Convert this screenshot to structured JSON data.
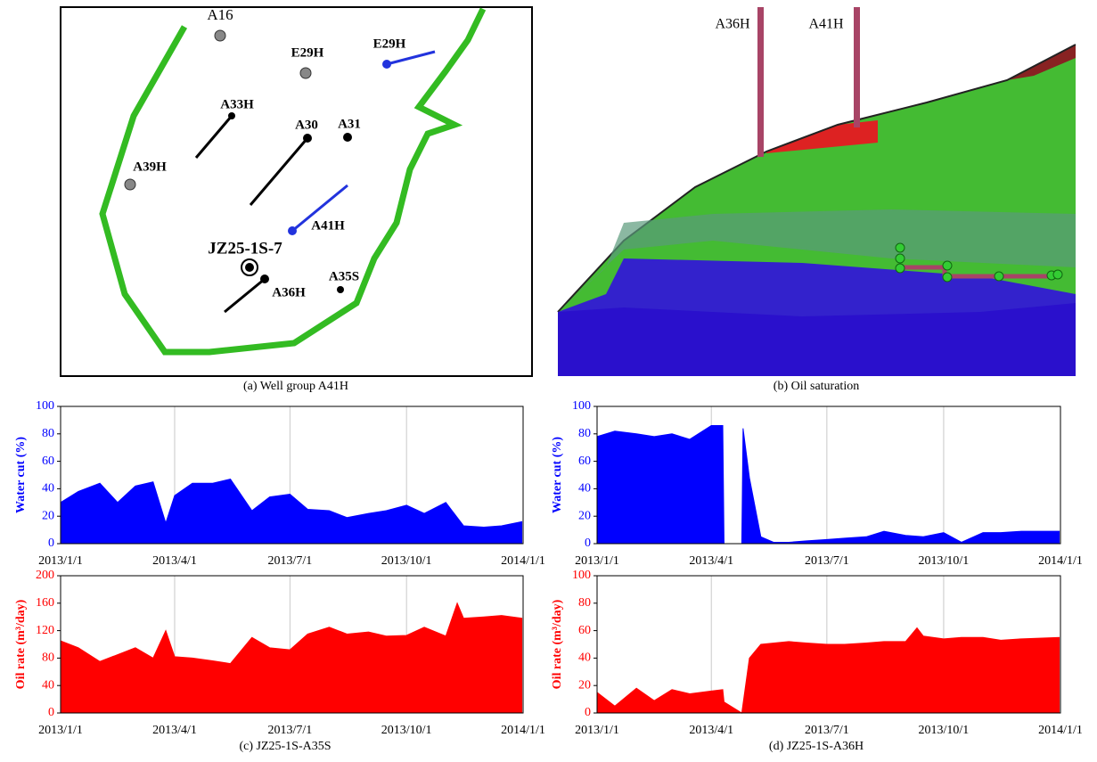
{
  "figure": {
    "captions": [
      "(a) Well group A41H",
      "(b) Oil saturation",
      "(c) JZ25-1S-A35S",
      "(d) JZ25-1S-A36H"
    ],
    "map_labels": [
      "A16",
      "E29H",
      "E29H",
      "A33H",
      "A30",
      "A31",
      "A39H",
      "A41H",
      "JZ25-1S-7",
      "A35S",
      "A36H"
    ],
    "view_labels": [
      "A36H",
      "A41H"
    ]
  },
  "chart_data": [
    {
      "type": "area",
      "y_label": "Water cut (%)",
      "color": "#0000ff",
      "grid": "x",
      "x": [
        "2013/1/1",
        "2013/1/15",
        "2013/2/1",
        "2013/2/15",
        "2013/3/1",
        "2013/3/15",
        "2013/3/25",
        "2013/4/1",
        "2013/4/15",
        "2013/5/1",
        "2013/5/15",
        "2013/6/1",
        "2013/6/15",
        "2013/7/1",
        "2013/7/15",
        "2013/8/1",
        "2013/8/15",
        "2013/9/1",
        "2013/9/15",
        "2013/10/1",
        "2013/10/15",
        "2013/11/1",
        "2013/11/15",
        "2013/12/1",
        "2013/12/15",
        "2013/12/31"
      ],
      "values": [
        30,
        38,
        44,
        30,
        42,
        45,
        15,
        35,
        44,
        44,
        47,
        24,
        34,
        36,
        25,
        24,
        19,
        22,
        24,
        28,
        22,
        30,
        13,
        12,
        13,
        16
      ],
      "xlim": [
        "2013/1/1",
        "2014/1/1"
      ],
      "xticks": [
        "2013/1/1",
        "2013/4/1",
        "2013/7/1",
        "2013/10/1",
        "2014/1/1"
      ],
      "ylim": [
        0,
        100
      ],
      "yticks": [
        0,
        20,
        40,
        60,
        80,
        100
      ]
    },
    {
      "type": "area",
      "y_label": "Oil rate (m³/day)",
      "color": "#ff0000",
      "grid": "x",
      "x": [
        "2013/1/1",
        "2013/1/15",
        "2013/2/1",
        "2013/2/15",
        "2013/3/1",
        "2013/3/15",
        "2013/3/25",
        "2013/4/1",
        "2013/4/15",
        "2013/5/1",
        "2013/5/15",
        "2013/6/1",
        "2013/6/15",
        "2013/7/1",
        "2013/7/15",
        "2013/8/1",
        "2013/8/15",
        "2013/9/1",
        "2013/9/15",
        "2013/10/1",
        "2013/10/15",
        "2013/11/1",
        "2013/11/10",
        "2013/11/15",
        "2013/12/1",
        "2013/12/15",
        "2013/12/31"
      ],
      "values": [
        105,
        95,
        75,
        85,
        95,
        80,
        120,
        82,
        80,
        76,
        72,
        110,
        95,
        92,
        115,
        125,
        115,
        118,
        112,
        113,
        125,
        112,
        160,
        138,
        140,
        142,
        138
      ],
      "xlim": [
        "2013/1/1",
        "2014/1/1"
      ],
      "xticks": [
        "2013/1/1",
        "2013/4/1",
        "2013/7/1",
        "2013/10/1",
        "2014/1/1"
      ],
      "ylim": [
        0,
        200
      ],
      "yticks": [
        0,
        40,
        80,
        120,
        160,
        200
      ]
    },
    {
      "type": "area",
      "y_label": "Water cut (%)",
      "color": "#0000ff",
      "grid": "x",
      "x": [
        "2013/1/1",
        "2013/1/15",
        "2013/2/1",
        "2013/2/15",
        "2013/3/1",
        "2013/3/15",
        "2013/4/1",
        "2013/4/10",
        "2013/4/11",
        "2013/4/25",
        "2013/4/26",
        "2013/5/1",
        "2013/5/10",
        "2013/5/20",
        "2013/6/1",
        "2013/6/15",
        "2013/7/1",
        "2013/7/15",
        "2013/8/1",
        "2013/8/15",
        "2013/9/1",
        "2013/9/15",
        "2013/10/1",
        "2013/10/15",
        "2013/11/1",
        "2013/11/15",
        "2013/12/1",
        "2013/12/31"
      ],
      "values": [
        78,
        82,
        80,
        78,
        80,
        76,
        86,
        86,
        0,
        0,
        84,
        48,
        5,
        1,
        1,
        2,
        3,
        4,
        5,
        9,
        6,
        5,
        8,
        1,
        8,
        8,
        9,
        9
      ],
      "xlim": [
        "2013/1/1",
        "2014/1/1"
      ],
      "xticks": [
        "2013/1/1",
        "2013/4/1",
        "2013/7/1",
        "2013/10/1",
        "2014/1/1"
      ],
      "ylim": [
        0,
        100
      ],
      "yticks": [
        0,
        20,
        40,
        60,
        80,
        100
      ]
    },
    {
      "type": "area",
      "y_label": "Oil rate (m³/day)",
      "color": "#ff0000",
      "grid": "x",
      "x": [
        "2013/1/1",
        "2013/1/15",
        "2013/2/1",
        "2013/2/15",
        "2013/3/1",
        "2013/3/15",
        "2013/4/1",
        "2013/4/10",
        "2013/4/11",
        "2013/4/25",
        "2013/5/1",
        "2013/5/10",
        "2013/6/1",
        "2013/6/15",
        "2013/7/1",
        "2013/7/15",
        "2013/8/1",
        "2013/8/15",
        "2013/9/1",
        "2013/9/10",
        "2013/9/15",
        "2013/10/1",
        "2013/10/15",
        "2013/11/1",
        "2013/11/15",
        "2013/12/1",
        "2013/12/31"
      ],
      "values": [
        15,
        5,
        18,
        9,
        17,
        14,
        16,
        17,
        8,
        0,
        40,
        50,
        52,
        51,
        50,
        50,
        51,
        52,
        52,
        62,
        56,
        54,
        55,
        55,
        53,
        54,
        55
      ],
      "xlim": [
        "2013/1/1",
        "2014/1/1"
      ],
      "xticks": [
        "2013/1/1",
        "2013/4/1",
        "2013/7/1",
        "2013/10/1",
        "2014/1/1"
      ],
      "ylim": [
        0,
        100
      ],
      "yticks": [
        0,
        20,
        40,
        60,
        80,
        100
      ]
    }
  ]
}
